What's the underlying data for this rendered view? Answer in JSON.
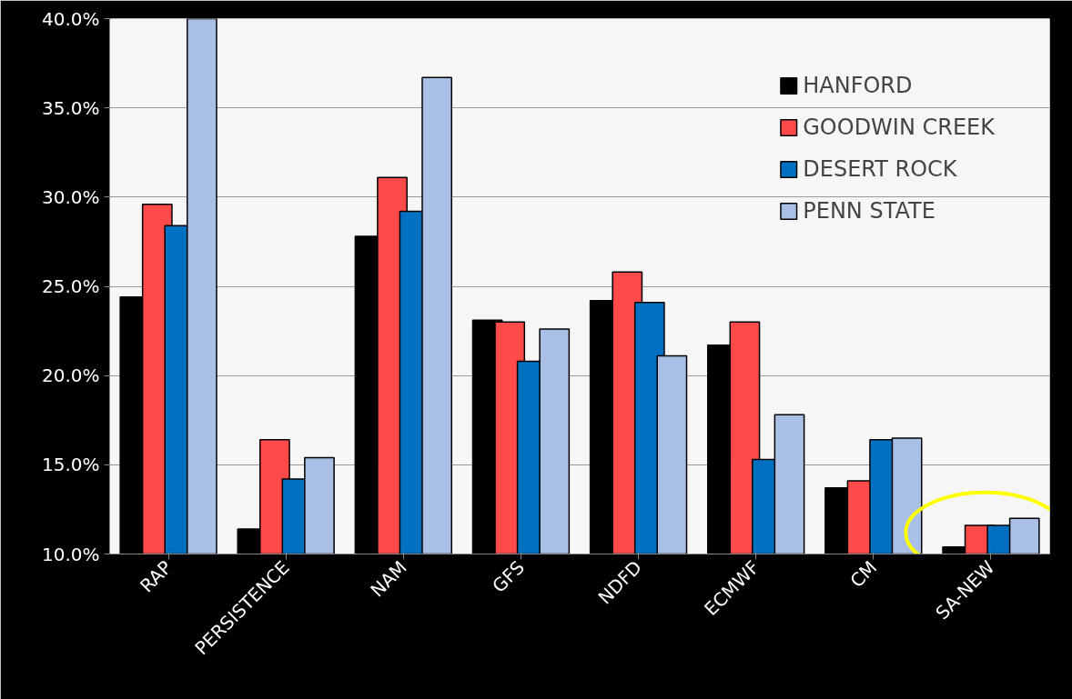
{
  "chart_data": {
    "type": "bar",
    "categories": [
      "RAP",
      "PERSISTENCE",
      "NAM",
      "GFS",
      "NDFD",
      "ECMWF",
      "CM",
      "SA-NEW"
    ],
    "series": [
      {
        "name": "HANFORD",
        "color": "#000000",
        "values": [
          24.4,
          11.4,
          27.8,
          23.1,
          24.2,
          21.7,
          13.7,
          10.4
        ]
      },
      {
        "name": "GOODWIN CREEK",
        "color": "#ff4a4a",
        "values": [
          29.6,
          16.4,
          31.1,
          23.0,
          25.8,
          23.0,
          14.1,
          11.6
        ]
      },
      {
        "name": "DESERT ROCK",
        "color": "#0070c0",
        "values": [
          28.4,
          14.2,
          29.2,
          20.8,
          24.1,
          15.3,
          16.4,
          11.6
        ]
      },
      {
        "name": "PENN STATE",
        "color": "#a9bfe6",
        "values": [
          40.0,
          15.4,
          36.7,
          22.6,
          21.1,
          17.8,
          16.5,
          12.0
        ]
      }
    ],
    "ylim": [
      10,
      40
    ],
    "yticks": [
      {
        "value": 10,
        "label": "10.0%"
      },
      {
        "value": 15,
        "label": "15.0%"
      },
      {
        "value": 20,
        "label": "20.0%"
      },
      {
        "value": 25,
        "label": "25.0%"
      },
      {
        "value": 30,
        "label": "30.0%"
      },
      {
        "value": 35,
        "label": "35.0%"
      },
      {
        "value": 40,
        "label": "40.0%"
      }
    ],
    "grid": "y",
    "legend": "top right"
  }
}
